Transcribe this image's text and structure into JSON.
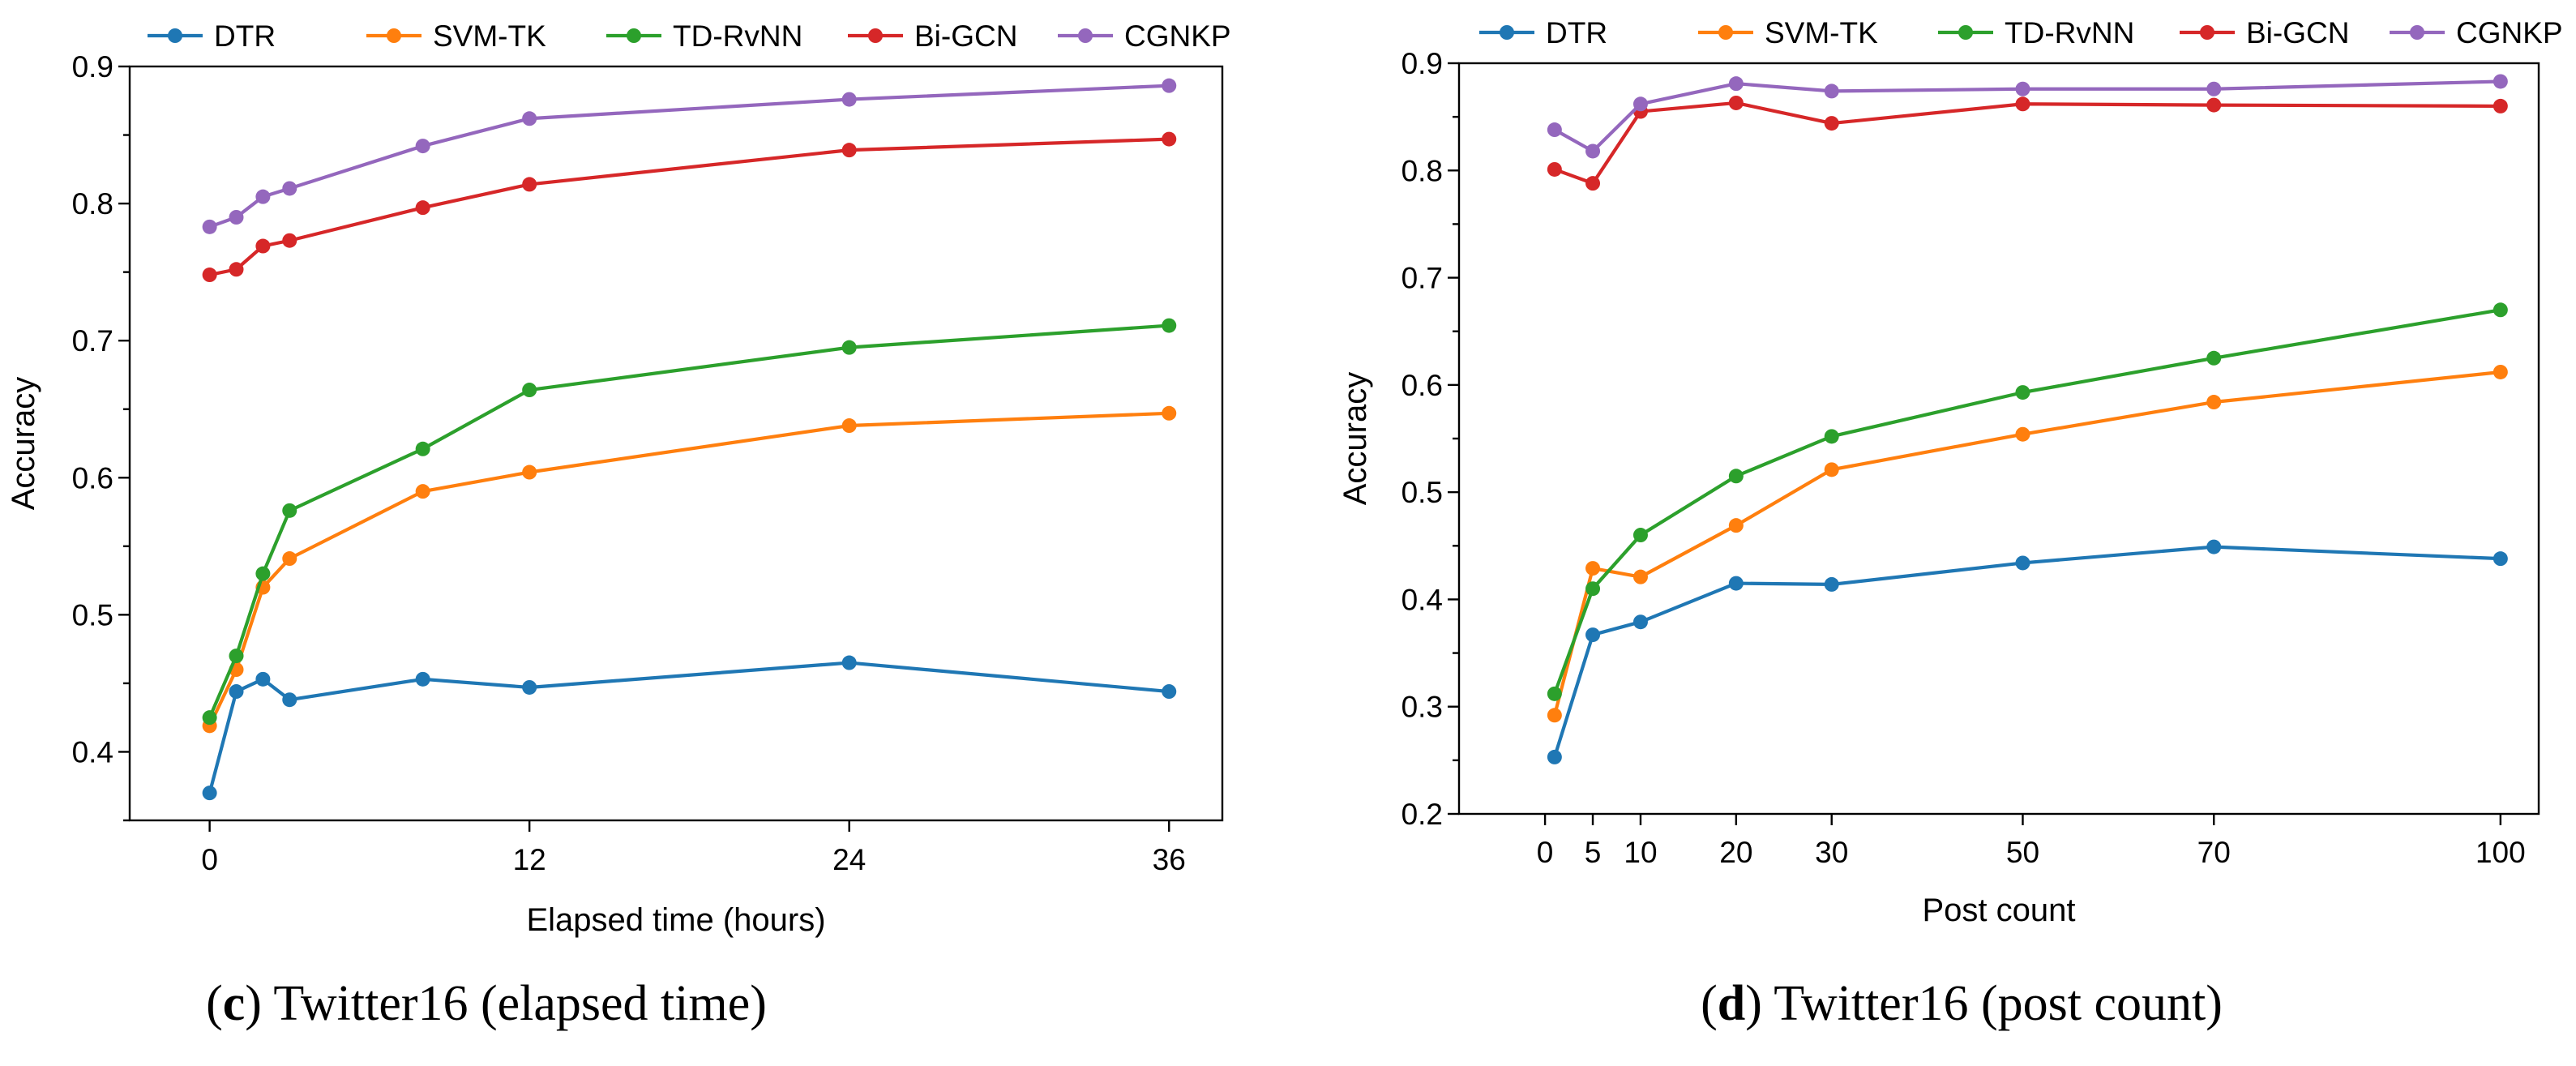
{
  "colors": {
    "DTR": "#1f77b4",
    "SVM-TK": "#ff7f0e",
    "TD-RvNN": "#2ca02c",
    "Bi-GCN": "#d62728",
    "CGNKP": "#9467bd"
  },
  "chart_data": [
    {
      "type": "line",
      "panel_letter": "c",
      "caption_text": " Twitter16 (elapsed time)",
      "xlabel": "Elapsed time (hours)",
      "ylabel": "Accuracy",
      "xlim": [
        -3,
        38
      ],
      "ylim": [
        0.35,
        0.9
      ],
      "xticks": [
        0,
        12,
        24,
        36
      ],
      "yticks": [
        0.4,
        0.5,
        0.6,
        0.7,
        0.8,
        0.9
      ],
      "legend": [
        "DTR",
        "SVM-TK",
        "TD-RvNN",
        "Bi-GCN",
        "CGNKP"
      ],
      "x": [
        0,
        1,
        2,
        3,
        8,
        12,
        24,
        36
      ],
      "series": [
        {
          "name": "DTR",
          "values": [
            0.37,
            0.444,
            0.453,
            0.438,
            0.453,
            0.447,
            0.465,
            0.444
          ]
        },
        {
          "name": "SVM-TK",
          "values": [
            0.419,
            0.46,
            0.52,
            0.541,
            0.59,
            0.604,
            0.638,
            0.647
          ]
        },
        {
          "name": "TD-RvNN",
          "values": [
            0.425,
            0.47,
            0.53,
            0.576,
            0.621,
            0.664,
            0.695,
            0.711
          ]
        },
        {
          "name": "Bi-GCN",
          "values": [
            0.748,
            0.752,
            0.769,
            0.773,
            0.797,
            0.814,
            0.839,
            0.847
          ]
        },
        {
          "name": "CGNKP",
          "values": [
            0.783,
            0.79,
            0.805,
            0.811,
            0.842,
            0.862,
            0.876,
            0.886
          ]
        }
      ]
    },
    {
      "type": "line",
      "panel_letter": "d",
      "caption_text": " Twitter16 (post count)",
      "xlabel": "Post count",
      "ylabel": "Accuracy",
      "xlim": [
        -9,
        104
      ],
      "ylim": [
        0.2,
        0.9
      ],
      "xticks": [
        0,
        5,
        10,
        20,
        30,
        50,
        70,
        100
      ],
      "yticks": [
        0.2,
        0.3,
        0.4,
        0.5,
        0.6,
        0.7,
        0.8,
        0.9
      ],
      "legend": [
        "DTR",
        "SVM-TK",
        "TD-RvNN",
        "Bi-GCN",
        "CGNKP"
      ],
      "x": [
        1,
        5,
        10,
        20,
        30,
        50,
        70,
        100
      ],
      "series": [
        {
          "name": "DTR",
          "values": [
            0.253,
            0.367,
            0.379,
            0.415,
            0.414,
            0.434,
            0.449,
            0.438
          ]
        },
        {
          "name": "SVM-TK",
          "values": [
            0.292,
            0.429,
            0.421,
            0.469,
            0.521,
            0.554,
            0.584,
            0.612
          ]
        },
        {
          "name": "TD-RvNN",
          "values": [
            0.312,
            0.41,
            0.46,
            0.515,
            0.552,
            0.593,
            0.625,
            0.67
          ]
        },
        {
          "name": "Bi-GCN",
          "values": [
            0.801,
            0.788,
            0.855,
            0.863,
            0.844,
            0.862,
            0.861,
            0.86
          ]
        },
        {
          "name": "CGNKP",
          "values": [
            0.838,
            0.818,
            0.862,
            0.881,
            0.874,
            0.876,
            0.876,
            0.883
          ]
        }
      ]
    }
  ]
}
